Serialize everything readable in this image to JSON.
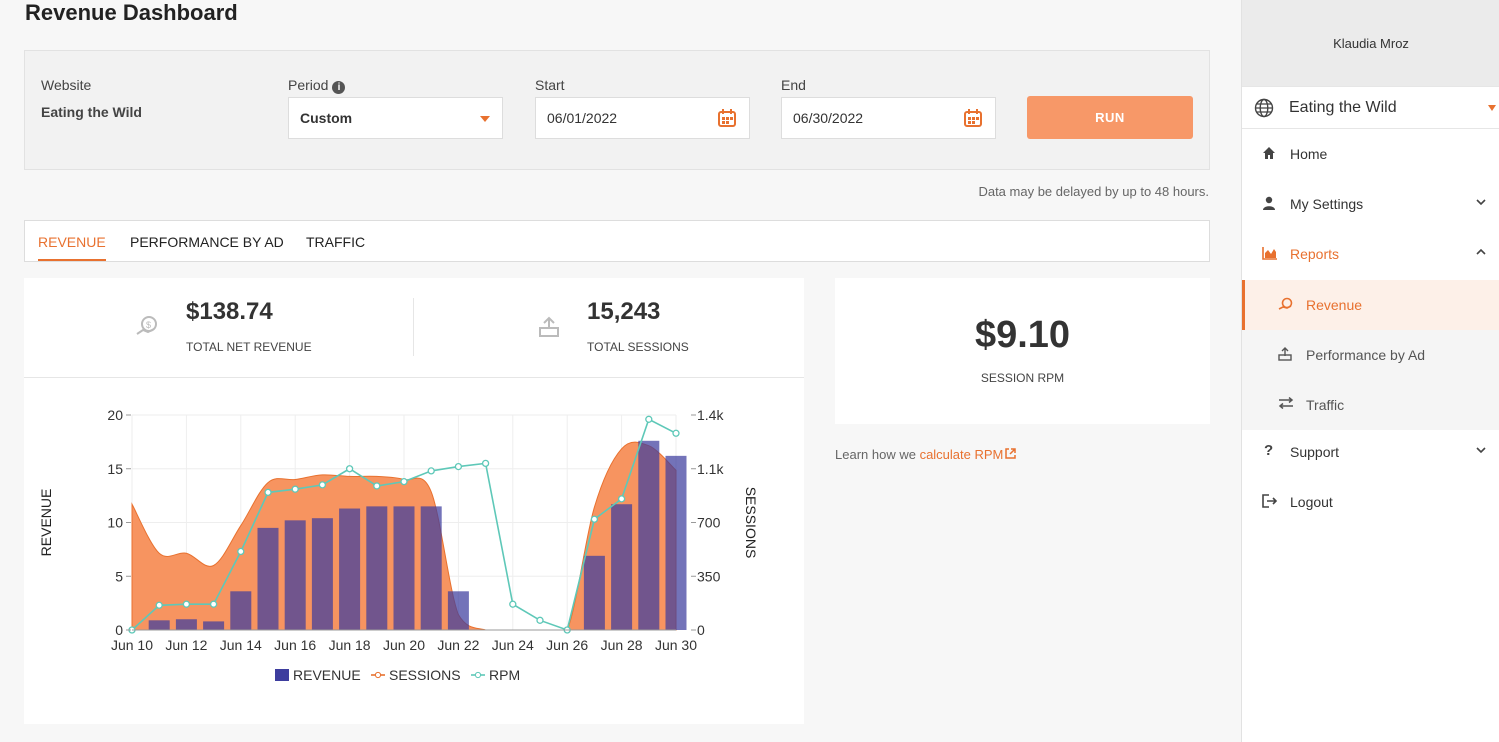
{
  "page": {
    "title": "Revenue Dashboard"
  },
  "filters": {
    "website_label": "Website",
    "website_value": "Eating the Wild",
    "period_label": "Period",
    "period_value": "Custom",
    "start_label": "Start",
    "start_value": "06/01/2022",
    "end_label": "End",
    "end_value": "06/30/2022",
    "run_label": "RUN"
  },
  "delay_note": "Data may be delayed by up to 48 hours.",
  "tabs": [
    {
      "label": "REVENUE",
      "active": true
    },
    {
      "label": "PERFORMANCE BY AD",
      "active": false
    },
    {
      "label": "TRAFFIC",
      "active": false
    }
  ],
  "kpis": {
    "revenue_value": "$138.74",
    "revenue_label": "TOTAL NET REVENUE",
    "sessions_value": "15,243",
    "sessions_label": "TOTAL SESSIONS",
    "rpm_value": "$9.10",
    "rpm_label": "SESSION RPM"
  },
  "learn": {
    "prefix": "Learn how we ",
    "link": "calculate RPM"
  },
  "sidebar": {
    "user": "Klaudia Mroz",
    "site": "Eating the Wild",
    "items": [
      {
        "label": "Home"
      },
      {
        "label": "My Settings"
      },
      {
        "label": "Reports"
      },
      {
        "label": "Revenue"
      },
      {
        "label": "Performance by Ad"
      },
      {
        "label": "Traffic"
      },
      {
        "label": "Support"
      },
      {
        "label": "Logout"
      }
    ]
  },
  "colors": {
    "accent": "#e8712f",
    "revenue_bar": "#3d3d9e",
    "sessions_area": "#f79460",
    "rpm_line": "#5ec8b8"
  },
  "chart_data": {
    "type": "bar",
    "x": [
      "Jun 10",
      "Jun 11",
      "Jun 12",
      "Jun 13",
      "Jun 14",
      "Jun 15",
      "Jun 16",
      "Jun 17",
      "Jun 18",
      "Jun 19",
      "Jun 20",
      "Jun 21",
      "Jun 22",
      "Jun 23",
      "Jun 24",
      "Jun 25",
      "Jun 26",
      "Jun 27",
      "Jun 28",
      "Jun 29",
      "Jun 30"
    ],
    "x_tick_labels": [
      "Jun 10",
      "Jun 12",
      "Jun 14",
      "Jun 16",
      "Jun 18",
      "Jun 20",
      "Jun 22",
      "Jun 24",
      "Jun 26",
      "Jun 28",
      "Jun 30"
    ],
    "series": [
      {
        "name": "REVENUE",
        "type": "bar",
        "axis": "left",
        "values": [
          0,
          0.9,
          1.0,
          0.8,
          3.6,
          9.5,
          10.2,
          10.4,
          11.3,
          11.5,
          11.5,
          11.5,
          3.6,
          0,
          0,
          0,
          0,
          6.9,
          11.7,
          17.6,
          16.2
        ]
      },
      {
        "name": "SESSIONS",
        "type": "area",
        "axis": "right",
        "values": [
          820,
          500,
          500,
          420,
          680,
          960,
          980,
          1010,
          1000,
          1000,
          980,
          900,
          100,
          0,
          0,
          0,
          0,
          800,
          1180,
          1200,
          1040
        ]
      },
      {
        "name": "RPM",
        "type": "line",
        "axis": "left",
        "values": [
          0,
          2.3,
          2.4,
          2.4,
          7.3,
          12.8,
          13.1,
          13.5,
          15.0,
          13.4,
          13.8,
          14.8,
          15.2,
          15.5,
          2.4,
          0.9,
          0,
          10.3,
          12.2,
          19.6,
          18.3
        ]
      }
    ],
    "left_axis": {
      "label": "REVENUE",
      "ticks": [
        "0",
        "5",
        "10",
        "15",
        "20"
      ],
      "range": [
        0,
        20
      ]
    },
    "right_axis": {
      "label": "SESSIONS",
      "ticks": [
        "0",
        "350",
        "700",
        "1.1k",
        "1.4k"
      ],
      "range": [
        0,
        1400
      ]
    },
    "legend": {
      "position": "bottom",
      "items": [
        "REVENUE",
        "SESSIONS",
        "RPM"
      ]
    }
  }
}
